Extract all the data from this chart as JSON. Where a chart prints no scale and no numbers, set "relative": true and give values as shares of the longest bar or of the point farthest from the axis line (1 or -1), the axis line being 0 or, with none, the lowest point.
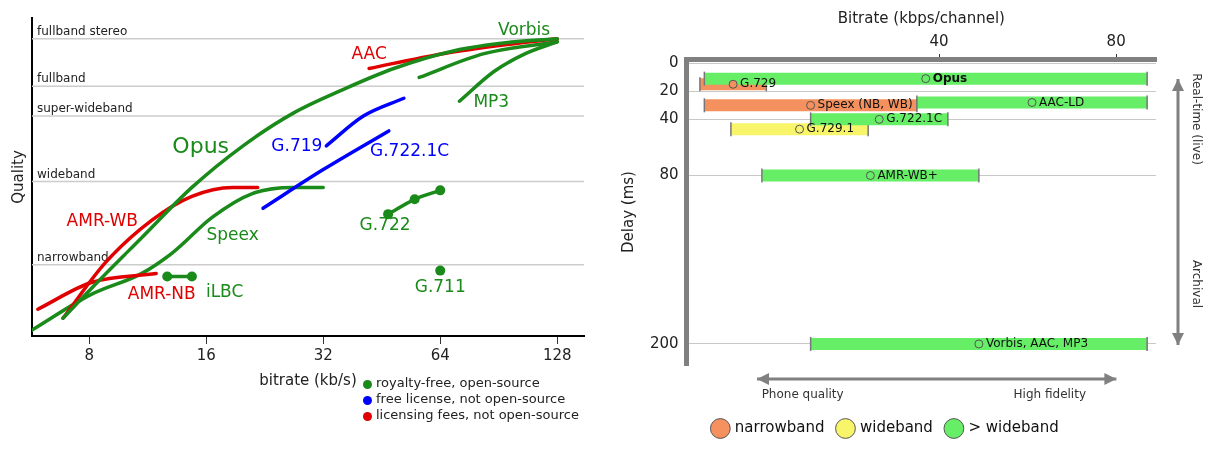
{
  "chart_data": [
    {
      "type": "line",
      "xlabel": "bitrate (kb/s)",
      "ylabel": "Quality",
      "log": "x",
      "relative": true,
      "tick_labels": "x",
      "legend": false,
      "marker": "none",
      "xlim": [
        5.7,
        150
      ],
      "xticks": [
        8,
        16,
        32,
        64,
        128
      ],
      "ref_lines": [
        {
          "axis": "y",
          "value": 1,
          "label": "fullband stereo",
          "color": "#cccccc"
        },
        {
          "axis": "y",
          "value": 0.84,
          "label": "fullband",
          "color": "#cccccc"
        },
        {
          "axis": "y",
          "value": 0.74,
          "label": "super-wideband",
          "color": "#cccccc"
        },
        {
          "axis": "y",
          "value": 0.52,
          "label": "wideband",
          "color": "#cccccc"
        },
        {
          "axis": "y",
          "value": 0.24,
          "label": "narrowband",
          "color": "#cccccc"
        }
      ],
      "series": [
        {
          "name": "Opus",
          "color": "#1a8a1a",
          "x": [
            6.85,
            8.1,
            10.9,
            14.7,
            19.9,
            26.8,
            36.1,
            48.6,
            69.6,
            99.6,
            128
          ],
          "values": [
            0.06,
            0.16,
            0.33,
            0.5,
            0.64,
            0.75,
            0.83,
            0.9,
            0.96,
            0.99,
            1
          ]
        },
        {
          "name": "G.719",
          "color": "#0000ff",
          "x": [
            32.6,
            40.6,
            51.6
          ],
          "values": [
            0.64,
            0.74,
            0.8
          ]
        },
        {
          "name": "G.722.1C",
          "color": "#0000ff",
          "x": [
            22.4,
            32,
            47.2
          ],
          "values": [
            0.43,
            0.56,
            0.69
          ]
        },
        {
          "name": "AAC",
          "color": "#e00000",
          "x": [
            42,
            65,
            94,
            128
          ],
          "values": [
            0.9,
            0.95,
            0.98,
            1
          ]
        },
        {
          "name": "AMR-WB",
          "color": "#e00000",
          "x": [
            6.85,
            8.85,
            11.6,
            14.7,
            18.7,
            21.7
          ],
          "values": [
            0.06,
            0.25,
            0.39,
            0.47,
            0.5,
            0.5
          ]
        },
        {
          "name": "AMR-NB",
          "color": "#e00000",
          "x": [
            5.9,
            8.1,
            11.9
          ],
          "values": [
            0.09,
            0.18,
            0.21
          ]
        },
        {
          "name": "Vorbis",
          "color": "#1a8a1a",
          "x": [
            56.5,
            83,
            128
          ],
          "values": [
            0.87,
            0.95,
            0.99
          ]
        },
        {
          "name": "MP3",
          "color": "#1a8a1a",
          "x": [
            71.7,
            88,
            106,
            128
          ],
          "values": [
            0.79,
            0.89,
            0.95,
            0.99
          ]
        },
        {
          "name": "Speex",
          "color": "#1a8a1a",
          "x": [
            5.7,
            8.1,
            10.9,
            13.1,
            16.6,
            21.1,
            26.8,
            32
          ],
          "values": [
            0.02,
            0.14,
            0.21,
            0.28,
            0.4,
            0.48,
            0.5,
            0.5
          ]
        },
        {
          "name": "iLBC",
          "color": "#1a8a1a",
          "marker": "circle",
          "x": [
            12.7,
            14.7
          ],
          "values": [
            0.2,
            0.2
          ]
        },
        {
          "name": "G.722",
          "color": "#1a8a1a",
          "marker": "circle",
          "x": [
            47,
            55,
            64
          ],
          "values": [
            0.41,
            0.46,
            0.49
          ]
        },
        {
          "name": "G.711",
          "color": "#1a8a1a",
          "marker": "circle",
          "x": [
            64
          ],
          "values": [
            0.22
          ]
        }
      ],
      "annotations": [
        "royalty-free, open-source",
        "free license, not open-source",
        "licensing fees, not open-source"
      ]
    },
    {
      "type": "scatter",
      "xlabel": "Bitrate (kbps/channel)",
      "ylabel": "Delay (ms)",
      "legend": "bottom",
      "grid": "y",
      "marker": "circle",
      "xlim": [
        -17,
        89
      ],
      "xticks": [
        40,
        80
      ],
      "ylim": [
        215,
        -3
      ],
      "yticks": [
        0,
        20,
        40,
        80,
        200
      ],
      "series": [
        {
          "name": "narrowband",
          "color": "#f4915e",
          "x": [
            -6.5,
            11
          ],
          "values": [
            15,
            30
          ],
          "xerrors": [
            [
              -14,
              1
            ],
            [
              -13,
              35
            ]
          ]
        },
        {
          "name": "wideband",
          "color": "#f8f56a",
          "x": [
            8.5
          ],
          "values": [
            47
          ],
          "xerrors": [
            [
              -7,
              24
            ]
          ]
        },
        {
          "name": "> wideband",
          "color": "#66ee66",
          "x": [
            37,
            61,
            26.5,
            24.5,
            49
          ],
          "values": [
            11,
            28,
            40,
            80,
            200
          ],
          "xerrors": [
            [
              -13,
              87
            ],
            [
              35,
              87
            ],
            [
              11,
              42
            ],
            [
              0,
              49
            ],
            [
              11,
              87
            ]
          ]
        }
      ],
      "annotations": [
        "Phone quality",
        "High fidelity",
        "Real-time (live)",
        "Archival",
        {
          "text": "Opus",
          "x": 37,
          "y": 11
        },
        {
          "text": "G.729",
          "x": -6.5,
          "y": 15
        },
        {
          "text": "Speex (NB, WB)",
          "x": 11,
          "y": 30
        },
        {
          "text": "AAC-LD",
          "x": 61,
          "y": 28
        },
        {
          "text": "G.722.1C",
          "x": 26.5,
          "y": 40
        },
        {
          "text": "G.729.1",
          "x": 8.5,
          "y": 47
        },
        {
          "text": "AMR-WB+",
          "x": 24.5,
          "y": 80
        },
        {
          "text": "Vorbis, AAC, MP3",
          "x": 49,
          "y": 200
        }
      ]
    }
  ]
}
